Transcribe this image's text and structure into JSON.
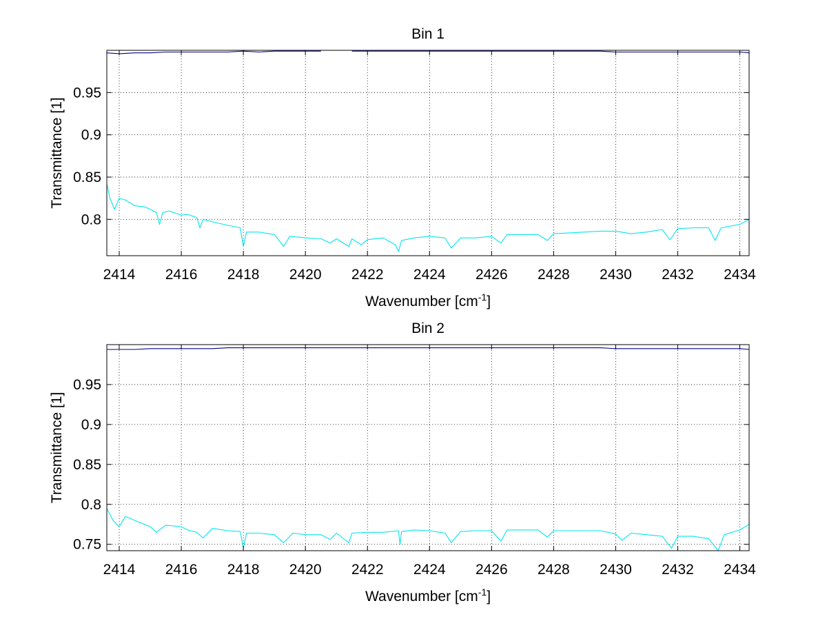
{
  "chart_data": [
    {
      "type": "line",
      "title": "Bin 1",
      "xlabel": "Wavenumber [cm",
      "xlabel_sup": "-1",
      "xlabel_tail": "]",
      "ylabel": "Transmittance [1]",
      "xlim": [
        2413.6,
        2434.3
      ],
      "ylim": [
        0.757,
        1.0
      ],
      "xticks": [
        2414,
        2416,
        2418,
        2420,
        2422,
        2424,
        2426,
        2428,
        2430,
        2432,
        2434
      ],
      "yticks": [
        0.8,
        0.85,
        0.9,
        0.95
      ],
      "grid": true,
      "colors": [
        "#00008B",
        "#00E5EE"
      ],
      "series": [
        {
          "x": [
            2413.6,
            2414.0,
            2414.5,
            2415.0,
            2415.5,
            2416.0,
            2416.5,
            2417.0,
            2417.5,
            2418.0,
            2418.5,
            2419.0,
            2419.5,
            2420.0,
            2420.5,
            2421.0,
            2421.5,
            2422.0,
            2422.5,
            2423.0,
            2423.5,
            2424.0,
            2424.5,
            2425.0,
            2425.5,
            2426.0,
            2426.5,
            2427.0,
            2427.5,
            2428.0,
            2428.5,
            2429.0,
            2429.5,
            2430.0,
            2430.5,
            2431.0,
            2431.5,
            2432.0,
            2432.5,
            2433.0,
            2433.5,
            2434.0,
            2434.3
          ],
          "y": [
            0.997,
            0.996,
            0.997,
            0.997,
            0.998,
            0.998,
            0.998,
            0.998,
            0.998,
            0.999,
            0.998,
            0.999,
            0.999,
            0.999,
            0.999,
            null,
            0.999,
            0.999,
            0.999,
            0.999,
            0.999,
            0.999,
            0.999,
            0.999,
            0.999,
            0.999,
            0.999,
            0.999,
            0.999,
            0.999,
            0.999,
            0.999,
            0.999,
            0.998,
            0.998,
            0.998,
            0.998,
            0.998,
            0.998,
            0.998,
            0.998,
            0.998,
            0.997
          ]
        },
        {
          "x": [
            2413.6,
            2413.7,
            2413.85,
            2414.0,
            2414.2,
            2414.5,
            2414.8,
            2415.0,
            2415.2,
            2415.3,
            2415.4,
            2415.6,
            2416.0,
            2416.2,
            2416.5,
            2416.6,
            2416.7,
            2417.0,
            2417.5,
            2417.9,
            2418.0,
            2418.1,
            2418.5,
            2419.0,
            2419.3,
            2419.5,
            2420.0,
            2420.5,
            2420.8,
            2421.0,
            2421.4,
            2421.5,
            2421.8,
            2422.0,
            2422.5,
            2422.9,
            2423.0,
            2423.1,
            2423.5,
            2424.0,
            2424.5,
            2424.7,
            2425.0,
            2425.5,
            2426.0,
            2426.3,
            2426.5,
            2427.0,
            2427.5,
            2427.8,
            2428.0,
            2428.5,
            2429.0,
            2429.5,
            2430.0,
            2430.5,
            2431.0,
            2431.5,
            2431.75,
            2432.0,
            2432.5,
            2433.0,
            2433.2,
            2433.4,
            2434.0,
            2434.3
          ],
          "y": [
            0.842,
            0.825,
            0.812,
            0.825,
            0.823,
            0.816,
            0.815,
            0.812,
            0.808,
            0.794,
            0.808,
            0.81,
            0.805,
            0.806,
            0.802,
            0.79,
            0.8,
            0.797,
            0.793,
            0.79,
            0.768,
            0.785,
            0.785,
            0.782,
            0.768,
            0.78,
            0.778,
            0.777,
            0.772,
            0.777,
            0.768,
            0.777,
            0.77,
            0.776,
            0.778,
            0.77,
            0.762,
            0.775,
            0.778,
            0.78,
            0.778,
            0.766,
            0.778,
            0.778,
            0.78,
            0.772,
            0.782,
            0.782,
            0.782,
            0.775,
            0.783,
            0.784,
            0.785,
            0.786,
            0.786,
            0.783,
            0.785,
            0.788,
            0.776,
            0.789,
            0.79,
            0.79,
            0.775,
            0.79,
            0.794,
            0.8
          ]
        }
      ]
    },
    {
      "type": "line",
      "title": "Bin 2",
      "xlabel": "Wavenumber [cm",
      "xlabel_sup": "-1",
      "xlabel_tail": "]",
      "ylabel": "Transmittance [1]",
      "xlim": [
        2413.6,
        2434.3
      ],
      "ylim": [
        0.742,
        1.0
      ],
      "xticks": [
        2414,
        2416,
        2418,
        2420,
        2422,
        2424,
        2426,
        2428,
        2430,
        2432,
        2434
      ],
      "yticks": [
        0.75,
        0.8,
        0.85,
        0.9,
        0.95
      ],
      "grid": true,
      "colors": [
        "#00008B",
        "#00E5EE"
      ],
      "series": [
        {
          "x": [
            2413.6,
            2414.0,
            2414.5,
            2415.0,
            2415.5,
            2416.0,
            2416.5,
            2417.0,
            2417.5,
            2418.0,
            2418.5,
            2419.0,
            2419.5,
            2420.0,
            2420.5,
            2421.0,
            2421.5,
            2422.0,
            2422.5,
            2423.0,
            2423.5,
            2424.0,
            2424.5,
            2425.0,
            2425.5,
            2426.0,
            2426.5,
            2427.0,
            2427.5,
            2428.0,
            2428.5,
            2429.0,
            2429.5,
            2430.0,
            2430.5,
            2431.0,
            2431.5,
            2432.0,
            2432.5,
            2433.0,
            2433.5,
            2434.0,
            2434.3
          ],
          "y": [
            0.994,
            0.994,
            0.994,
            0.995,
            0.995,
            0.995,
            0.995,
            0.995,
            0.996,
            0.996,
            0.996,
            0.996,
            0.996,
            0.996,
            0.996,
            0.996,
            0.996,
            0.996,
            0.996,
            0.996,
            0.996,
            0.996,
            0.996,
            0.996,
            0.996,
            0.996,
            0.996,
            0.996,
            0.996,
            0.996,
            0.996,
            0.996,
            0.996,
            0.995,
            0.995,
            0.995,
            0.995,
            0.995,
            0.995,
            0.995,
            0.995,
            0.995,
            0.994
          ]
        },
        {
          "x": [
            2413.6,
            2413.8,
            2414.0,
            2414.2,
            2414.5,
            2415.0,
            2415.2,
            2415.5,
            2416.0,
            2416.2,
            2416.5,
            2416.7,
            2417.0,
            2417.5,
            2417.9,
            2418.0,
            2418.1,
            2418.5,
            2419.0,
            2419.3,
            2419.6,
            2420.0,
            2420.5,
            2420.8,
            2421.0,
            2421.4,
            2421.5,
            2422.0,
            2422.5,
            2423.0,
            2423.05,
            2423.1,
            2423.5,
            2424.0,
            2424.5,
            2424.7,
            2425.0,
            2425.5,
            2426.0,
            2426.3,
            2426.5,
            2427.0,
            2427.5,
            2427.8,
            2428.0,
            2428.5,
            2429.0,
            2429.5,
            2430.0,
            2430.2,
            2430.5,
            2431.0,
            2431.5,
            2431.8,
            2432.0,
            2432.5,
            2433.0,
            2433.3,
            2433.5,
            2434.0,
            2434.3
          ],
          "y": [
            0.795,
            0.78,
            0.772,
            0.785,
            0.78,
            0.772,
            0.765,
            0.774,
            0.772,
            0.768,
            0.765,
            0.758,
            0.77,
            0.767,
            0.766,
            0.745,
            0.764,
            0.764,
            0.762,
            0.752,
            0.764,
            0.762,
            0.762,
            0.756,
            0.764,
            0.752,
            0.764,
            0.765,
            0.765,
            0.767,
            0.75,
            0.766,
            0.768,
            0.767,
            0.764,
            0.752,
            0.766,
            0.767,
            0.767,
            0.754,
            0.768,
            0.768,
            0.768,
            0.759,
            0.767,
            0.767,
            0.767,
            0.767,
            0.763,
            0.755,
            0.764,
            0.762,
            0.76,
            0.745,
            0.76,
            0.76,
            0.757,
            0.742,
            0.762,
            0.768,
            0.775
          ]
        }
      ]
    }
  ]
}
